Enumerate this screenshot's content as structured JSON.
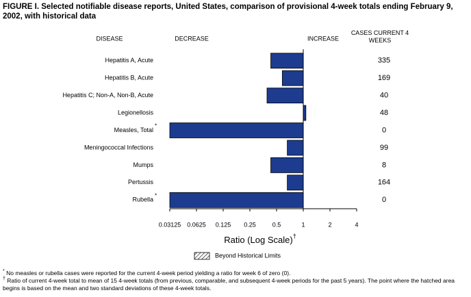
{
  "chart_data": {
    "type": "bar",
    "orientation": "horizontal",
    "title": "FIGURE I. Selected notifiable disease reports, United States, comparison of provisional 4-week totals ending February 9, 2002, with historical data",
    "category_header": "DISEASE",
    "decrease_label": "DECREASE",
    "increase_label": "INCREASE",
    "cases_header": "CASES CURRENT 4 WEEKS",
    "categories": [
      "Hepatitis A, Acute",
      "Hepatitis B, Acute",
      "Hepatitis C; Non-A, Non-B, Acute",
      "Legionellosis",
      "Measles, Total",
      "Meningococcal Infections",
      "Mumps",
      "Pertussis",
      "Rubella"
    ],
    "category_marks": [
      null,
      null,
      null,
      null,
      "*",
      null,
      null,
      null,
      "*"
    ],
    "series": [
      {
        "name": "Ratio",
        "color": "#1d3c8f",
        "values": [
          0.43,
          0.58,
          0.39,
          1.07,
          0.03125,
          0.66,
          0.43,
          0.66,
          0.03125
        ]
      }
    ],
    "cases": [
      335,
      169,
      40,
      48,
      0,
      99,
      8,
      164,
      0
    ],
    "xscale": "log",
    "baseline": 1,
    "xlim": [
      0.03125,
      4
    ],
    "xticks": [
      0.03125,
      0.0625,
      0.125,
      0.25,
      0.5,
      1,
      2,
      4
    ],
    "xlabel": "Ratio (Log Scale)",
    "xlabel_mark": "†",
    "legend": "Beyond Historical Limits",
    "footnotes": [
      {
        "mark": "*",
        "text": "No measles or rubella cases were reported for the current 4-week period yielding a ratio for week 6 of zero (0)."
      },
      {
        "mark": "†",
        "text": "Ratio of current 4-week total to mean of 15 4-week totals (from previous, comparable, and subsequent 4-week periods for the past 5 years). The point where the hatched area begins is based on the mean and two standard deviations of these 4-week totals."
      }
    ]
  }
}
